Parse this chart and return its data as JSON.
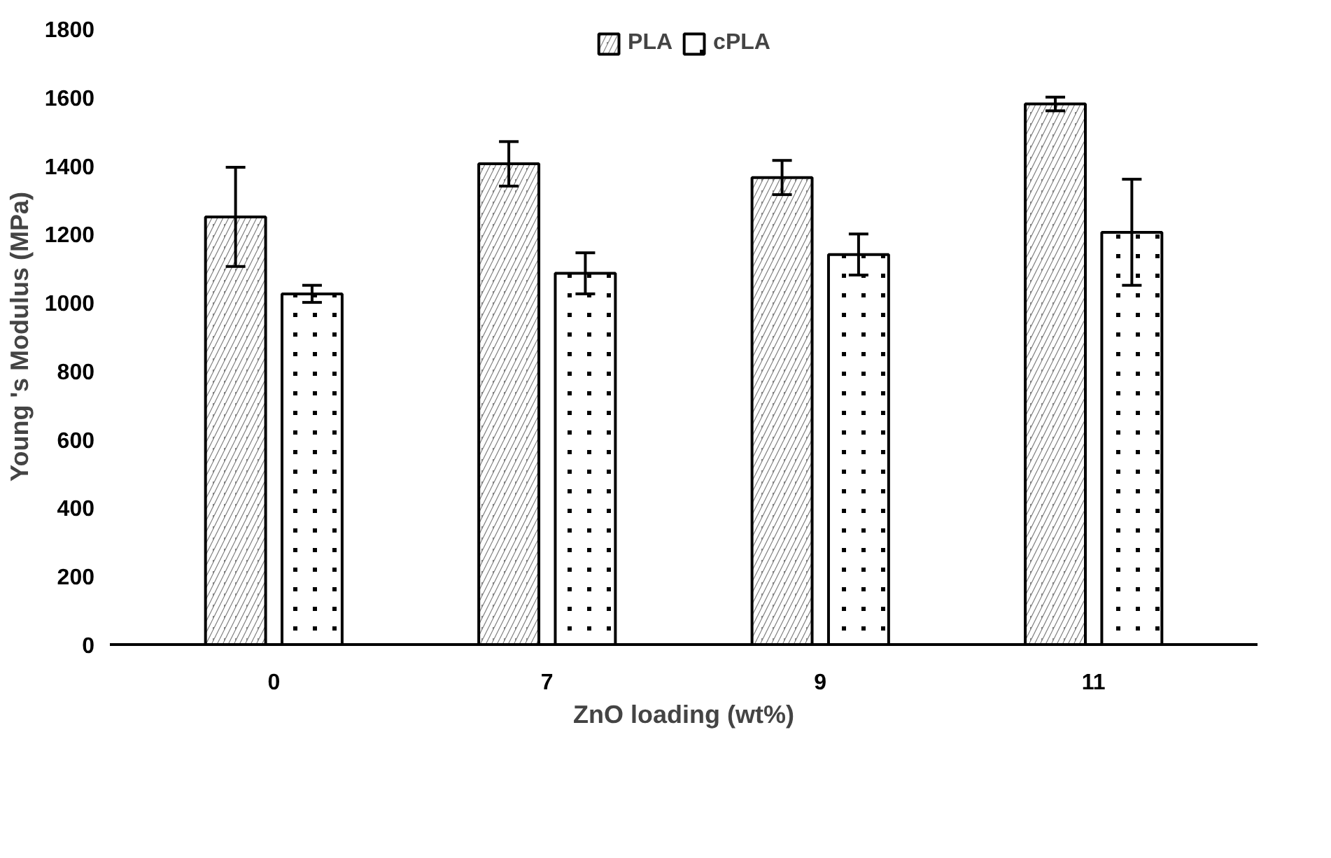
{
  "chart_data": {
    "type": "bar",
    "xlabel": "ZnO loading (wt%)",
    "ylabel": "Young 's Modulus (MPa)",
    "categories": [
      "0",
      "7",
      "9",
      "11"
    ],
    "series": [
      {
        "name": "PLA",
        "color": "#808080",
        "values": [
          1250,
          1405,
          1365,
          1580
        ],
        "errors": [
          145,
          65,
          50,
          20
        ]
      },
      {
        "name": "cPLA",
        "color": "#000000",
        "values": [
          1025,
          1085,
          1140,
          1205
        ],
        "errors": [
          25,
          60,
          60,
          155
        ]
      }
    ],
    "ylim": [
      0,
      1800
    ],
    "yticks": [
      0,
      200,
      400,
      600,
      800,
      1000,
      1200,
      1400,
      1600,
      1800
    ],
    "grid": false,
    "legend": "top"
  }
}
